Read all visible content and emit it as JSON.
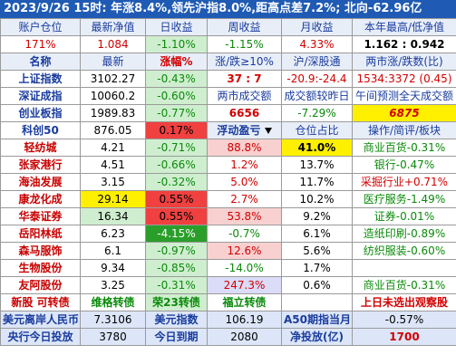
{
  "title": "2023/9/26  15时: 年涨8.4%,领先沪指8.0%,距高点差7.2%; 北向-62.96亿",
  "account_header": [
    "账户仓位",
    "最新净值",
    "日收益",
    "周收益",
    "月收益",
    "本年最高/低净值"
  ],
  "account_values": [
    "171%",
    "1.084",
    "-1.10%",
    "-1.15%",
    "4.33%",
    "1.162 : 0.942"
  ],
  "index_header": [
    "名称",
    "最新",
    "涨幅%",
    "涨/跌≥10%",
    "沪/深股通",
    "两市涨/跌数(比)"
  ],
  "indices": [
    {
      "name": "上证指数",
      "price": "3102.27",
      "change": "-0.43%",
      "c4": "37 : 7",
      "c5": "-20.9:-24.4",
      "c6": "1534:3372 (0.45)"
    },
    {
      "name": "深证成指",
      "price": "10060.2",
      "change": "-0.60%",
      "c4": "两市成交额",
      "c5": "成交额较昨日",
      "c6": "午间预测全天成交额"
    },
    {
      "name": "创业板指",
      "price": "1989.83",
      "change": "-0.77%",
      "c4": "6656",
      "c5": "-7.29%",
      "c6": "6875"
    },
    {
      "name": "科创50",
      "price": "876.05",
      "change": "0.17%"
    }
  ],
  "holdings_header": [
    "浮动盈亏",
    "仓位占比",
    "操作/简评/板块"
  ],
  "holdings": [
    {
      "name": "轻纺城",
      "price": "4.21",
      "change": "-0.71%",
      "pnl": "88.8%",
      "weight": "41.0%",
      "note": "商业百货-0.31%"
    },
    {
      "name": "张家港行",
      "price": "4.51",
      "change": "-0.66%",
      "pnl": "1.2%",
      "weight": "13.7%",
      "note": "银行-0.47%"
    },
    {
      "name": "海油发展",
      "price": "3.15",
      "change": "-0.32%",
      "pnl": "5.0%",
      "weight": "11.7%",
      "note": "采掘行业+0.71%"
    },
    {
      "name": "康龙化成",
      "price": "29.14",
      "change": "0.55%",
      "pnl": "2.7%",
      "weight": "10.2%",
      "note": "医疗服务-1.49%"
    },
    {
      "name": "华泰证券",
      "price": "16.34",
      "change": "0.55%",
      "pnl": "53.8%",
      "weight": "9.2%",
      "note": "证券-0.01%"
    },
    {
      "name": "岳阳林纸",
      "price": "6.23",
      "change": "-4.15%",
      "pnl": "-0.7%",
      "weight": "6.1%",
      "note": "造纸印刷-0.89%"
    },
    {
      "name": "森马服饰",
      "price": "6.1",
      "change": "-0.97%",
      "pnl": "12.6%",
      "weight": "5.6%",
      "note": "纺织服装-0.60%"
    },
    {
      "name": "生物股份",
      "price": "9.34",
      "change": "-0.85%",
      "pnl": "-14.0%",
      "weight": "1.7%",
      "note": ""
    },
    {
      "name": "友阿股份",
      "price": "3.25",
      "change": "-0.31%",
      "pnl": "247.3%",
      "weight": "0.6%",
      "note": "商业百货-0.31%"
    }
  ],
  "bonds_row": {
    "name": "新股 可转债",
    "c2": "维格转债",
    "c3": "荣23转债",
    "c4": "福立转债",
    "note": "上日未选出观察股"
  },
  "footer1": {
    "l1": "美元离岸人民币",
    "v1": "7.3106",
    "l2": "美元指数",
    "v2": "106.19",
    "l3": "A50期指当月",
    "v3": "-0.57%"
  },
  "footer2": {
    "l1": "央行今日投放",
    "v1": "3780",
    "l2": "今日到期",
    "v2": "2080",
    "l3": "净投放(亿)",
    "v3": "1700"
  },
  "colors": {
    "title_bg": "#1f5ab4",
    "up": "#d20000",
    "down": "#0a8a0a",
    "header": "#1a3c9e"
  }
}
